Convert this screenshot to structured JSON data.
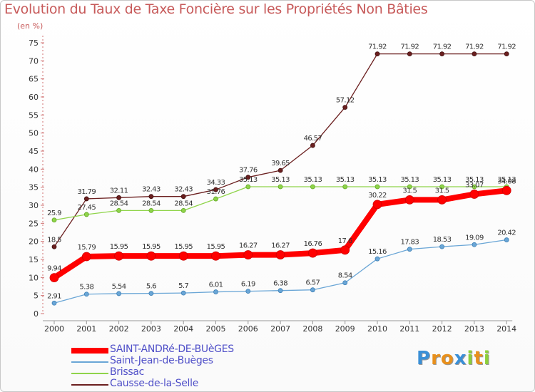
{
  "chart_data": {
    "type": "line",
    "title": "Evolution du Taux de Taxe Foncière sur les Propriétés Non Bâties",
    "subtitle": "(en %)",
    "xlabel": "",
    "ylabel": "(en %)",
    "ylim": [
      0,
      75
    ],
    "grid": false,
    "x": [
      "2000",
      "2001",
      "2002",
      "2003",
      "2004",
      "2005",
      "2006",
      "2007",
      "2008",
      "2009",
      "2010",
      "2011",
      "2012",
      "2013",
      "2014"
    ],
    "yticks": [
      "0",
      "5",
      "10",
      "15",
      "20",
      "25",
      "30",
      "35",
      "40",
      "45",
      "50",
      "55",
      "60",
      "65",
      "70",
      "75"
    ],
    "series": [
      {
        "name": "Causse-de-la-Selle",
        "color": "#6b1f1f",
        "values": [
          18.5,
          31.79,
          32.11,
          32.43,
          32.43,
          34.33,
          37.76,
          39.65,
          46.57,
          57.12,
          71.92,
          71.92,
          71.92,
          71.92,
          71.92
        ],
        "labels": [
          "18.5",
          "31.79",
          "32.11",
          "32.43",
          "32.43",
          "34.33",
          "37.76",
          "39.65",
          "46.57",
          "57.12",
          "71.92",
          "71.92",
          "71.92",
          "71.92",
          "71.92"
        ]
      },
      {
        "name": "Brissac",
        "color": "#8fd44a",
        "values": [
          25.9,
          27.45,
          28.54,
          28.54,
          28.54,
          31.76,
          35.13,
          35.13,
          35.13,
          35.13,
          35.13,
          35.13,
          35.13,
          35.13,
          35.13
        ],
        "labels": [
          "25.9",
          "27.45",
          "28.54",
          "28.54",
          "28.54",
          "31.76",
          "35.13",
          "35.13",
          "35.13",
          "35.13",
          "35.13",
          "35.13",
          "35.13",
          "35.13",
          "35.13"
        ]
      },
      {
        "name": "Saint-Jean-de-Buèges",
        "color": "#6aa6d6",
        "values": [
          2.91,
          5.38,
          5.54,
          5.6,
          5.7,
          6.01,
          6.19,
          6.38,
          6.57,
          8.54,
          15.16,
          17.83,
          18.53,
          19.09,
          20.42
        ],
        "labels": [
          "2.91",
          "5.38",
          "5.54",
          "5.6",
          "5.7",
          "6.01",
          "6.19",
          "6.38",
          "6.57",
          "8.54",
          "15.16",
          "17.83",
          "18.53",
          "19.09",
          "20.42"
        ]
      },
      {
        "name": "SAINT-ANDRé-DE-BUèGES",
        "color": "#ff0000",
        "values": [
          9.94,
          15.79,
          15.95,
          15.95,
          15.95,
          15.95,
          16.27,
          16.27,
          16.76,
          17.6,
          30.22,
          31.5,
          31.5,
          33.07,
          34.08
        ],
        "labels": [
          "9.94",
          "15.79",
          "15.95",
          "15.95",
          "15.95",
          "15.95",
          "16.27",
          "16.27",
          "16.76",
          "17.6",
          "30.22",
          "31.5",
          "31.5",
          "33.07",
          "34.08"
        ]
      }
    ],
    "legend": [
      "SAINT-ANDRé-DE-BUèGES",
      "Saint-Jean-de-Buèges",
      "Brissac",
      "Causse-de-la-Selle"
    ]
  },
  "logo": {
    "letters": [
      "P",
      "r",
      "o",
      "x",
      "i",
      "t",
      "i"
    ],
    "colors": [
      "#3a8fd6",
      "#e8901c",
      "#e8901c",
      "#3a8fd6",
      "#8ccf3a",
      "#e8901c",
      "#8ccf3a"
    ]
  }
}
